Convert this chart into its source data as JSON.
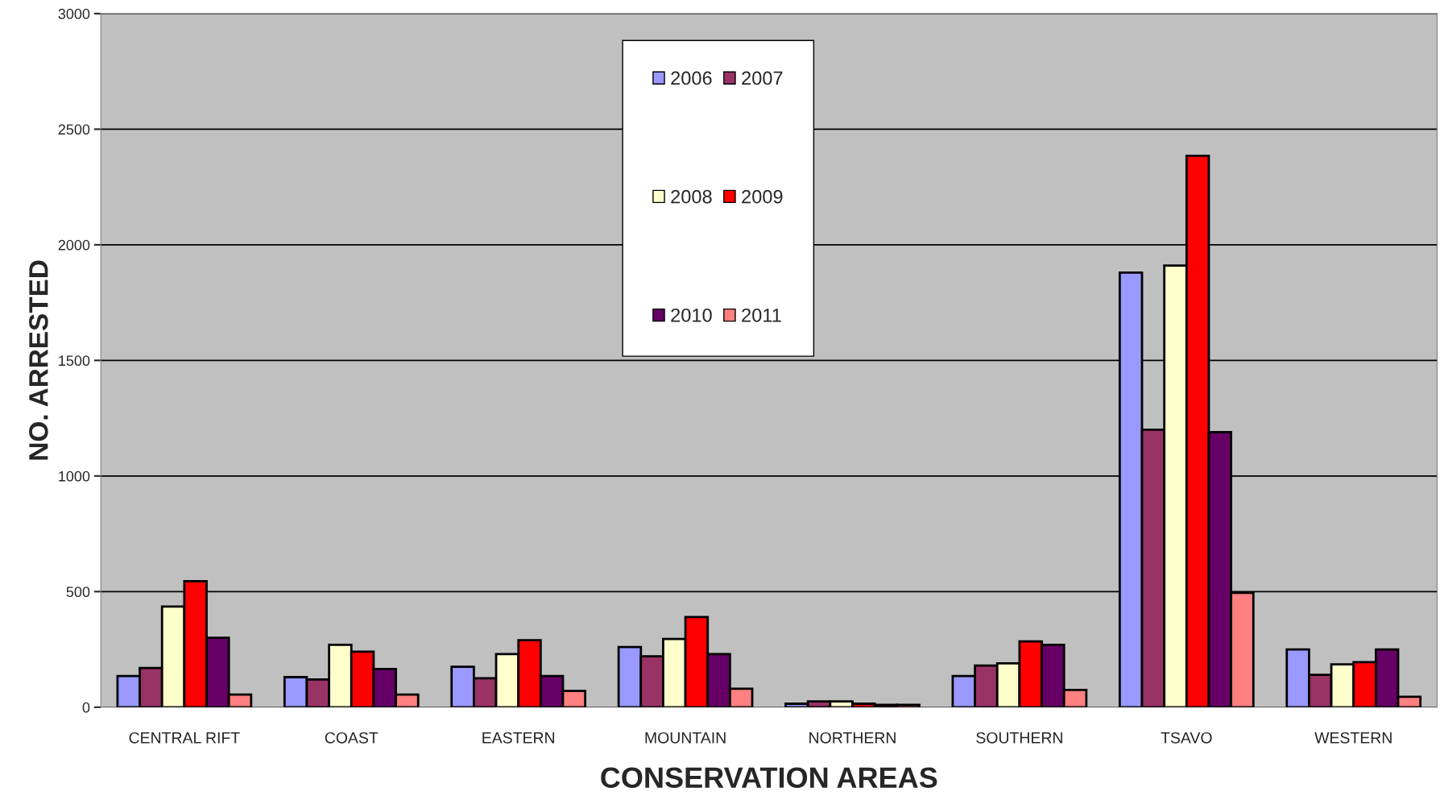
{
  "chart_data": {
    "type": "bar",
    "xlabel": "CONSERVATION AREAS",
    "ylabel": "NO. ARRESTED",
    "categories": [
      "CENTRAL RIFT",
      "COAST",
      "EASTERN",
      "MOUNTAIN",
      "NORTHERN",
      "SOUTHERN",
      "TSAVO",
      "WESTERN"
    ],
    "series": [
      {
        "name": "2006",
        "color": "#9999ff",
        "values": [
          135,
          130,
          175,
          260,
          15,
          135,
          1880,
          250
        ]
      },
      {
        "name": "2007",
        "color": "#993366",
        "values": [
          170,
          120,
          125,
          220,
          25,
          180,
          1200,
          140
        ]
      },
      {
        "name": "2008",
        "color": "#ffffcc",
        "values": [
          435,
          270,
          230,
          295,
          25,
          190,
          1910,
          185
        ]
      },
      {
        "name": "2009",
        "color": "#ff0000",
        "values": [
          545,
          240,
          290,
          390,
          15,
          285,
          2385,
          195
        ]
      },
      {
        "name": "2010",
        "color": "#660066",
        "values": [
          300,
          165,
          135,
          230,
          10,
          270,
          1190,
          250
        ]
      },
      {
        "name": "2011",
        "color": "#ff8080",
        "values": [
          55,
          55,
          70,
          80,
          10,
          75,
          495,
          45
        ]
      }
    ],
    "ylim": [
      0,
      3000
    ],
    "yticks": [
      0,
      500,
      1000,
      1500,
      2000,
      2500,
      3000
    ],
    "grid": "y",
    "legend": "top"
  }
}
